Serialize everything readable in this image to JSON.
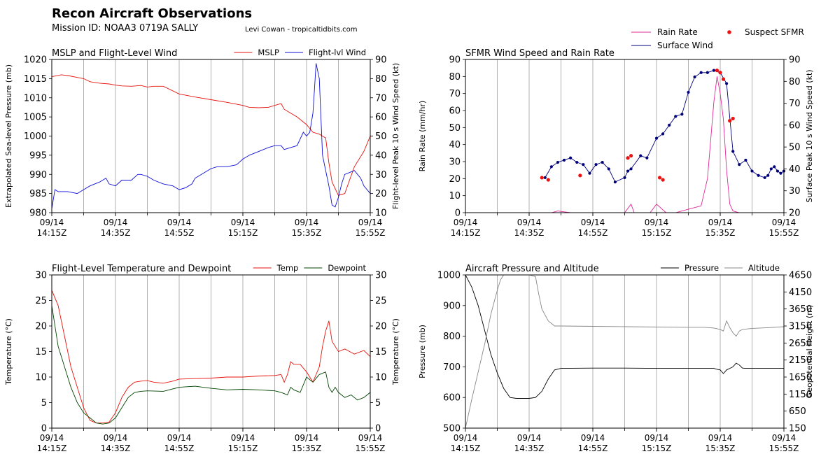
{
  "header": {
    "title": "Recon Aircraft Observations",
    "mission": "Mission ID: NOAA3 0719A SALLY",
    "credit": "Levi Cowan - tropicaltidbits.com"
  },
  "x_axis": {
    "tick_dates": [
      "09/14",
      "09/14",
      "09/14",
      "09/14",
      "09/14",
      "09/14"
    ],
    "tick_times": [
      "14:15Z",
      "14:35Z",
      "14:55Z",
      "15:15Z",
      "15:35Z",
      "15:55Z"
    ]
  },
  "top_legend": {
    "rain_rate": "Rain Rate",
    "surface_wind": "Surface Wind",
    "suspect_sfmr": "Suspect SFMR"
  },
  "colors": {
    "mslp": "#e8120c",
    "flight_wind": "#1010d8",
    "rain": "#e0289a",
    "sfmr": "#00007a",
    "suspect": "#ee1111",
    "temp": "#e8120c",
    "dewpoint": "#004400",
    "pressure": "#000000",
    "altitude": "#888888",
    "grid": "#a8a8a8"
  },
  "chart_data": [
    {
      "type": "line",
      "title": "MSLP and Flight-Level Wind",
      "ylabel": "Extrapolated Sea-level Pressure (mb)",
      "ylabel_right": "Flight-level Peak 10 s Wind Speed (kt)",
      "xlim": [
        0,
        100
      ],
      "ylim": [
        980,
        1020
      ],
      "ylim_right": [
        10,
        90
      ],
      "yticks": [
        "980",
        "985",
        "990",
        "995",
        "1000",
        "1005",
        "1010",
        "1015",
        "1020"
      ],
      "yticks_right": [
        "10",
        "20",
        "30",
        "40",
        "50",
        "60",
        "70",
        "80",
        "90"
      ],
      "grid": "vertical",
      "legend": "top-right",
      "series": [
        {
          "name": "MSLP",
          "axis": "left",
          "x": [
            0,
            3,
            5,
            8,
            10,
            12,
            15,
            18,
            20,
            22,
            25,
            28,
            30,
            32,
            35,
            40,
            45,
            50,
            55,
            60,
            62,
            65,
            68,
            70,
            72,
            73,
            75,
            77,
            80,
            82,
            84,
            85,
            86,
            87,
            88,
            90,
            92,
            95,
            98,
            100
          ],
          "y": [
            1015.5,
            1016,
            1015.8,
            1015.3,
            1015,
            1014.2,
            1013.8,
            1013.6,
            1013.3,
            1013.1,
            1013,
            1013.2,
            1012.8,
            1013,
            1013,
            1011,
            1010.2,
            1009.5,
            1008.8,
            1008,
            1007.5,
            1007.4,
            1007.5,
            1008,
            1008.5,
            1007,
            1006,
            1005,
            1003,
            1001,
            1000.5,
            1000,
            999.5,
            993,
            988,
            984.5,
            985,
            992,
            996,
            1000
          ],
          "color": "mslp"
        },
        {
          "name": "Flight-lvl Wind",
          "axis": "right",
          "x": [
            0,
            1,
            2,
            5,
            8,
            10,
            12,
            15,
            17,
            18,
            20,
            22,
            25,
            27,
            28,
            30,
            32,
            35,
            38,
            40,
            42,
            44,
            45,
            48,
            50,
            52,
            55,
            58,
            60,
            62,
            65,
            68,
            70,
            72,
            73,
            75,
            77,
            79,
            80,
            81,
            82,
            82.5,
            83,
            84,
            85,
            86,
            87,
            88,
            89,
            90,
            91,
            92,
            95,
            97,
            98,
            100
          ],
          "y": [
            12,
            22,
            21,
            21,
            20,
            22,
            24,
            26,
            28,
            25,
            24,
            27,
            27,
            30,
            30,
            29,
            27,
            25,
            24,
            22,
            23,
            25,
            28,
            31,
            33,
            34,
            34,
            35,
            38,
            40,
            42,
            44,
            45,
            45,
            43,
            44,
            45,
            52,
            50,
            52,
            62,
            75,
            88,
            80,
            40,
            32,
            24,
            14,
            13,
            18,
            25,
            30,
            32,
            28,
            24,
            20
          ],
          "color": "flight_wind"
        }
      ]
    },
    {
      "type": "line",
      "title": "SFMR Wind Speed and Rain Rate",
      "ylabel": "Rain Rate (mm/hr)",
      "ylabel_right": "Surface Peak 10 s Wind Speed (kt)",
      "xlim": [
        0,
        100
      ],
      "ylim": [
        0,
        90
      ],
      "ylim_right": [
        20,
        90
      ],
      "yticks": [
        "0",
        "10",
        "20",
        "30",
        "40",
        "50",
        "60",
        "70",
        "80",
        "90"
      ],
      "yticks_right": [
        "20",
        "30",
        "40",
        "50",
        "60",
        "70",
        "80",
        "90"
      ],
      "grid": "vertical",
      "legend": "top-right",
      "series": [
        {
          "name": "Surface Wind",
          "axis": "right",
          "x": [
            25,
            27,
            29,
            31,
            33,
            35,
            37,
            39,
            41,
            43,
            45,
            47,
            50,
            51,
            52,
            55,
            57,
            60,
            62,
            64,
            66,
            68,
            70,
            72,
            74,
            76,
            78,
            80,
            82,
            84,
            86,
            88,
            90,
            92,
            94,
            95,
            96,
            97,
            98,
            99,
            100
          ],
          "y": [
            36,
            41,
            43,
            44,
            45,
            43,
            42,
            38,
            42,
            43,
            40,
            34,
            36,
            39,
            40,
            46,
            45,
            54,
            56,
            60,
            64,
            65,
            75,
            82,
            84,
            84,
            85,
            84,
            79,
            48,
            42,
            44,
            39,
            37,
            36,
            37,
            40,
            41,
            39,
            38,
            39
          ],
          "color": "sfmr"
        },
        {
          "name": "Suspect SFMR",
          "axis": "right",
          "x": [
            24,
            26,
            36,
            51,
            52,
            61,
            62,
            79,
            80,
            81,
            83,
            84
          ],
          "y": [
            36,
            35,
            37,
            45,
            46,
            36,
            35,
            85,
            84,
            81,
            62,
            63
          ],
          "color": "suspect"
        },
        {
          "name": "Rain Rate",
          "axis": "left",
          "x": [
            25,
            27,
            29,
            31,
            33,
            36,
            40,
            50,
            52,
            53,
            55,
            58,
            60,
            63,
            66,
            70,
            72,
            74,
            76,
            78,
            79,
            80,
            81,
            82,
            83,
            84,
            86,
            88,
            90,
            93,
            96,
            100
          ],
          "y": [
            0,
            0,
            1,
            0.5,
            0,
            0,
            0,
            0,
            5,
            0,
            0,
            0,
            5,
            0,
            0,
            2,
            3,
            4,
            20,
            65,
            80,
            70,
            55,
            25,
            5,
            1,
            0,
            0,
            0,
            0,
            0,
            0
          ],
          "color": "rain"
        }
      ]
    },
    {
      "type": "line",
      "title": "Flight-Level Temperature and Dewpoint",
      "ylabel": "Temperature (°C)",
      "ylabel_right": "Temperature (°C)",
      "xlim": [
        0,
        100
      ],
      "ylim": [
        0,
        30
      ],
      "ylim_right": [
        0,
        30
      ],
      "yticks": [
        "0",
        "5",
        "10",
        "15",
        "20",
        "25",
        "30"
      ],
      "yticks_right": [
        "0",
        "5",
        "10",
        "15",
        "20",
        "25",
        "30"
      ],
      "grid": "vertical",
      "legend": "top-right",
      "series": [
        {
          "name": "Temp",
          "axis": "left",
          "x": [
            0,
            2,
            4,
            6,
            8,
            10,
            12,
            14,
            16,
            18,
            20,
            22,
            24,
            26,
            28,
            30,
            32,
            35,
            38,
            40,
            45,
            50,
            55,
            60,
            65,
            70,
            72,
            73,
            74,
            75,
            76,
            78,
            80,
            82,
            84,
            85,
            86,
            87,
            88,
            89,
            90,
            92,
            95,
            98,
            100
          ],
          "y": [
            27,
            24,
            18,
            12,
            8,
            4,
            1.5,
            1,
            1,
            1.2,
            3,
            6,
            8,
            9,
            9.2,
            9.3,
            9,
            8.8,
            9.2,
            9.6,
            9.7,
            9.8,
            10,
            10,
            10.2,
            10.3,
            10.5,
            9,
            10.5,
            13,
            12.5,
            12.5,
            11,
            9,
            12,
            16,
            19,
            21,
            17,
            16,
            15,
            15.5,
            14.5,
            15.2,
            14
          ],
          "color": "temp"
        },
        {
          "name": "Dewpoint",
          "axis": "left",
          "x": [
            0,
            2,
            4,
            6,
            8,
            10,
            12,
            14,
            16,
            18,
            20,
            22,
            24,
            26,
            28,
            30,
            35,
            40,
            45,
            50,
            55,
            60,
            65,
            70,
            72,
            74,
            75,
            76,
            78,
            80,
            82,
            84,
            86,
            87,
            88,
            89,
            90,
            92,
            94,
            96,
            98,
            100
          ],
          "y": [
            24,
            16,
            12,
            8,
            5,
            3,
            2,
            1,
            0.8,
            1,
            2,
            4,
            6,
            7,
            7.2,
            7.3,
            7.2,
            8,
            8.2,
            7.8,
            7.5,
            7.6,
            7.5,
            7.3,
            7,
            6.5,
            8,
            7.5,
            7,
            10,
            9,
            10.5,
            11,
            8,
            7,
            8,
            7,
            6,
            6.5,
            5.5,
            6,
            7
          ],
          "color": "dewpoint"
        }
      ]
    },
    {
      "type": "line",
      "title": "Aircraft Pressure and Altitude",
      "ylabel": "Pressure (mb)",
      "ylabel_right": "Geopotential Height (m)",
      "xlim": [
        0,
        100
      ],
      "ylim": [
        500,
        1000
      ],
      "ylim_right": [
        150,
        4650
      ],
      "yticks": [
        "500",
        "600",
        "700",
        "800",
        "900",
        "1000"
      ],
      "yticks_right": [
        "150",
        "650",
        "1150",
        "1650",
        "2150",
        "2650",
        "3150",
        "3650",
        "4150",
        "4650"
      ],
      "grid": "vertical",
      "legend": "top-right",
      "series": [
        {
          "name": "Pressure",
          "axis": "left",
          "x": [
            0,
            2,
            4,
            6,
            8,
            10,
            12,
            14,
            16,
            18,
            20,
            22,
            24,
            26,
            28,
            30,
            40,
            50,
            60,
            70,
            78,
            79,
            80,
            81,
            82,
            83,
            84,
            85,
            86,
            87,
            88,
            90,
            95,
            100
          ],
          "y": [
            1000,
            960,
            900,
            820,
            740,
            680,
            630,
            600,
            597,
            597,
            597,
            600,
            620,
            660,
            690,
            695,
            696,
            696,
            695,
            695,
            695,
            692,
            690,
            678,
            690,
            695,
            700,
            712,
            706,
            696,
            695,
            695,
            695,
            695
          ],
          "color": "pressure"
        },
        {
          "name": "Altitude",
          "axis": "right",
          "x": [
            0,
            2,
            4,
            6,
            8,
            10,
            11,
            12,
            14,
            16,
            18,
            20,
            22,
            23,
            24,
            26,
            28,
            30,
            40,
            50,
            60,
            70,
            75,
            78,
            80,
            81,
            82,
            83,
            84,
            85,
            86,
            87,
            88,
            90,
            95,
            100
          ],
          "y": [
            150,
            1000,
            1800,
            2600,
            3500,
            4200,
            4500,
            4650,
            4650,
            4650,
            4650,
            4650,
            4600,
            4100,
            3650,
            3300,
            3150,
            3150,
            3140,
            3130,
            3120,
            3110,
            3110,
            3090,
            3050,
            3000,
            3300,
            3100,
            2950,
            2850,
            3000,
            3050,
            3060,
            3080,
            3100,
            3130
          ],
          "color": "altitude"
        }
      ]
    }
  ]
}
